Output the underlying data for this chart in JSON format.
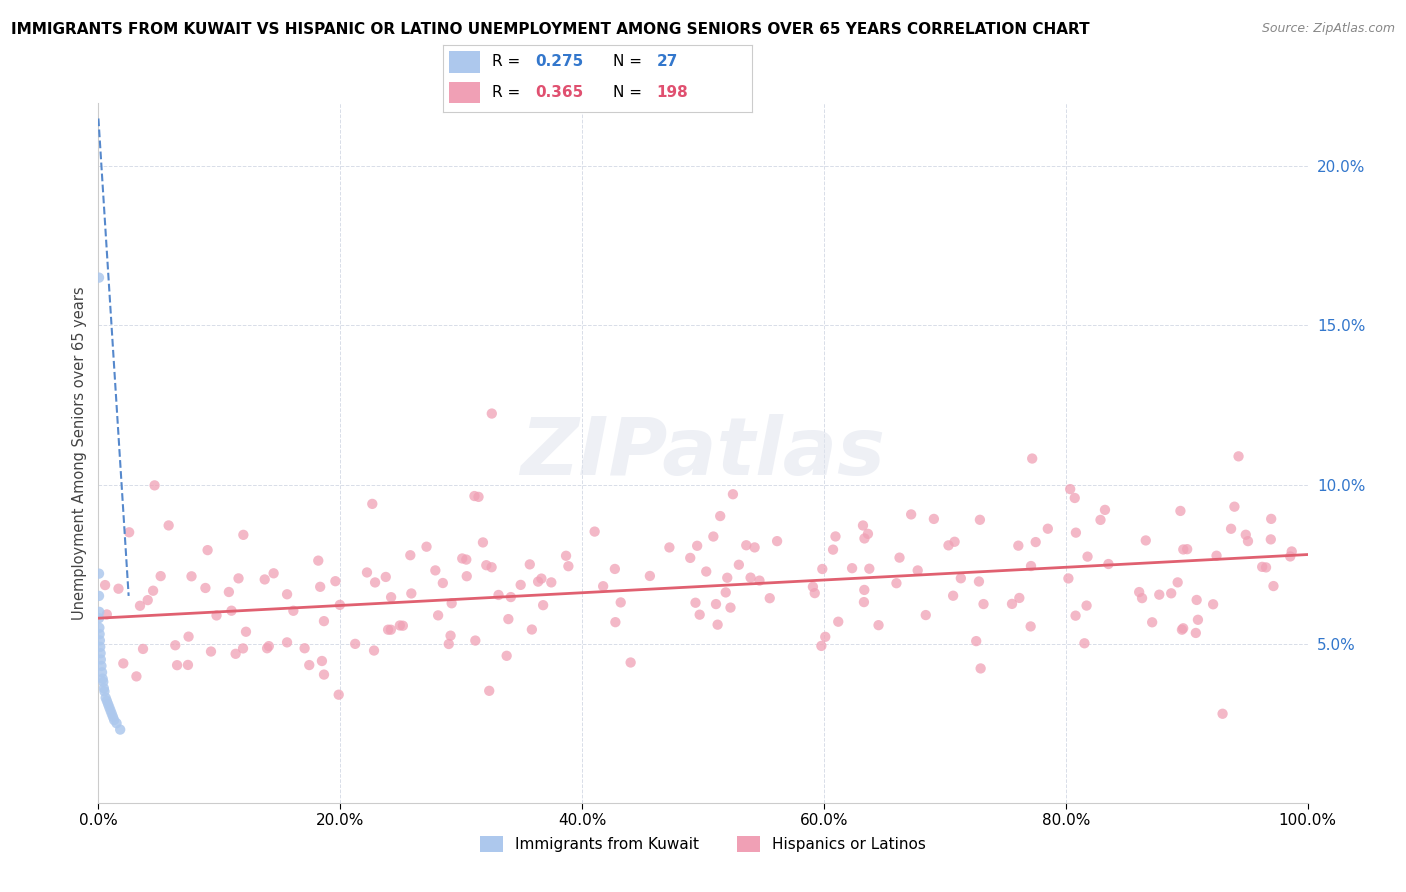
{
  "title": "IMMIGRANTS FROM KUWAIT VS HISPANIC OR LATINO UNEMPLOYMENT AMONG SENIORS OVER 65 YEARS CORRELATION CHART",
  "source": "Source: ZipAtlas.com",
  "ylabel": "Unemployment Among Seniors over 65 years",
  "xlim": [
    0,
    100
  ],
  "ylim": [
    0,
    22
  ],
  "x_tick_values": [
    0,
    20,
    40,
    60,
    80,
    100
  ],
  "x_tick_labels": [
    "0.0%",
    "20.0%",
    "40.0%",
    "60.0%",
    "80.0%",
    "100.0%"
  ],
  "y_tick_values": [
    5,
    10,
    15,
    20
  ],
  "y_tick_labels": [
    "5.0%",
    "10.0%",
    "15.0%",
    "20.0%"
  ],
  "kuwait_color": "#adc8ed",
  "hispanic_color": "#f0a0b5",
  "kuwait_trend_color": "#5588cc",
  "hispanic_trend_color": "#e06070",
  "R_kuwait": 0.275,
  "N_kuwait": 27,
  "R_hispanic": 0.365,
  "N_hispanic": 198,
  "watermark_text": "ZIPatlas",
  "legend_label_kuwait": "Immigrants from Kuwait",
  "legend_label_hispanic": "Hispanics or Latinos",
  "kuwait_scatter_x": [
    0.05,
    0.05,
    0.05,
    0.07,
    0.08,
    0.1,
    0.12,
    0.15,
    0.18,
    0.2,
    0.25,
    0.3,
    0.35,
    0.4,
    0.45,
    0.5,
    0.6,
    0.7,
    0.8,
    0.9,
    1.0,
    1.1,
    1.2,
    1.3,
    1.5,
    1.8,
    0.05
  ],
  "kuwait_scatter_y": [
    6.5,
    7.2,
    5.8,
    6.0,
    5.5,
    5.3,
    5.1,
    4.9,
    4.7,
    4.5,
    4.3,
    4.1,
    3.9,
    3.8,
    3.6,
    3.5,
    3.3,
    3.2,
    3.1,
    3.0,
    2.9,
    2.8,
    2.7,
    2.6,
    2.5,
    2.3,
    16.5
  ],
  "kuwait_trend_x0": 0.0,
  "kuwait_trend_y0": 21.5,
  "kuwait_trend_x1": 2.5,
  "kuwait_trend_y1": 6.5,
  "hispanic_trend_x0": 0,
  "hispanic_trend_y0": 5.8,
  "hispanic_trend_x1": 100,
  "hispanic_trend_y1": 7.8
}
